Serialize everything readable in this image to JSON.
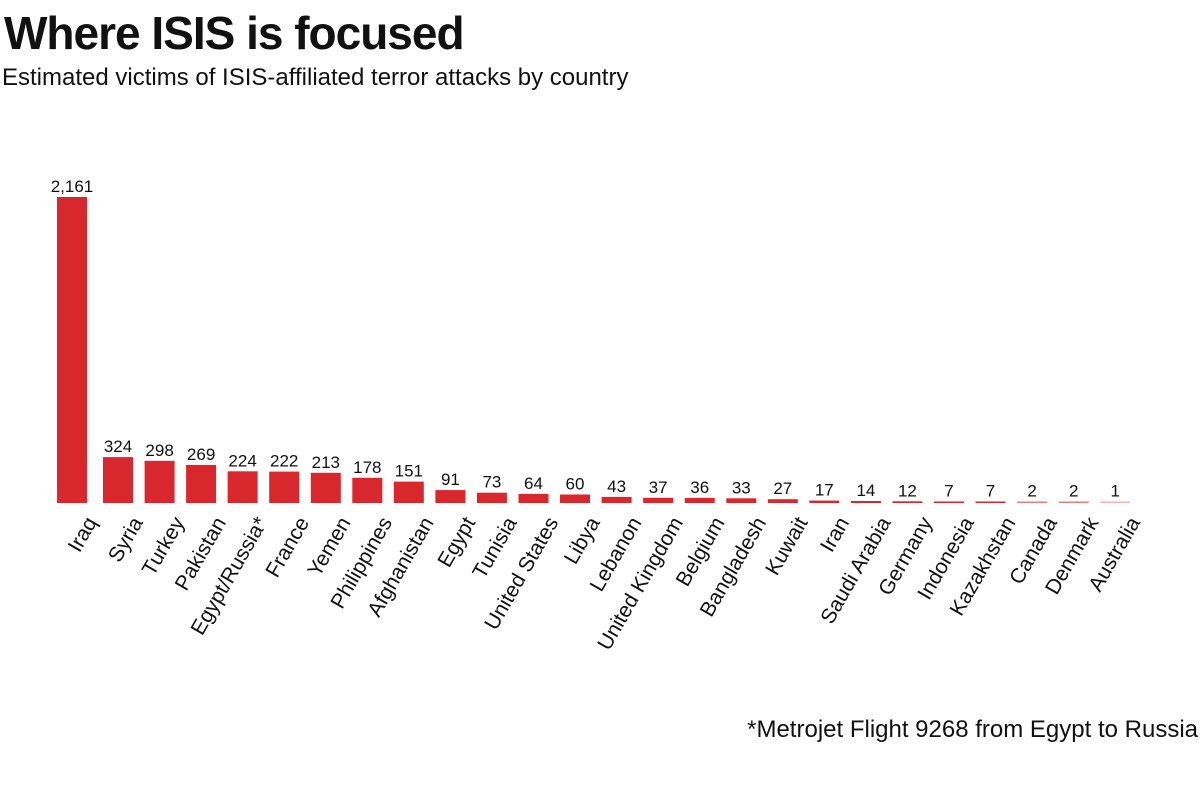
{
  "chart_data": {
    "type": "bar",
    "title": "Where ISIS is focused",
    "subtitle": "Estimated victims of ISIS-affiliated terror attacks by country",
    "xlabel": "",
    "ylabel": "",
    "ylim": [
      0,
      2161
    ],
    "grid": false,
    "legend": "none",
    "bar_color": "#d9272e",
    "categories": [
      "Iraq",
      "Syria",
      "Turkey",
      "Pakistan",
      "Egypt/Russia*",
      "France",
      "Yemen",
      "Philippines",
      "Afghanistan",
      "Egypt",
      "Tunisia",
      "United States",
      "Libya",
      "Lebanon",
      "United Kingdom",
      "Belgium",
      "Bangladesh",
      "Kuwait",
      "Iran",
      "Saudi Arabia",
      "Germany",
      "Indonesia",
      "Kazakhstan",
      "Canada",
      "Denmark",
      "Australia"
    ],
    "values": [
      2161,
      324,
      298,
      269,
      224,
      222,
      213,
      178,
      151,
      91,
      73,
      64,
      60,
      43,
      37,
      36,
      33,
      27,
      17,
      14,
      12,
      7,
      7,
      2,
      2,
      1
    ],
    "value_labels": [
      "2,161",
      "324",
      "298",
      "269",
      "224",
      "222",
      "213",
      "178",
      "151",
      "91",
      "73",
      "64",
      "60",
      "43",
      "37",
      "36",
      "33",
      "27",
      "17",
      "14",
      "12",
      "7",
      "7",
      "2",
      "2",
      "1"
    ],
    "footnote": "*Metrojet Flight 9268 from Egypt to Russia"
  }
}
